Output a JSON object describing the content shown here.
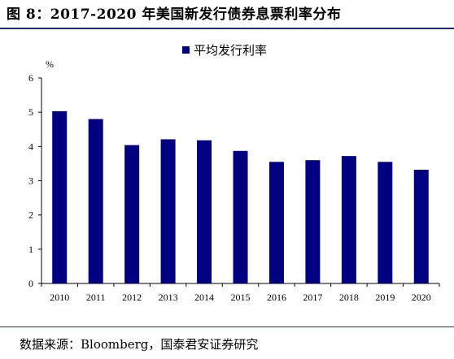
{
  "figure_title": "图 8：2017-2020 年美国新发行债券息票利率分布",
  "source_note": "数据来源：Bloomberg，国泰君安证券研究",
  "colors": {
    "bar": "#000080",
    "rule": "#1f2a7a",
    "axis": "#000000"
  },
  "chart_data": {
    "type": "bar",
    "title": "",
    "xlabel": "",
    "ylabel": "%",
    "categories": [
      "2010",
      "2011",
      "2012",
      "2013",
      "2014",
      "2015",
      "2016",
      "2017",
      "2018",
      "2019",
      "2020"
    ],
    "series": [
      {
        "name": "平均发行利率",
        "values": [
          5.03,
          4.8,
          4.04,
          4.21,
          4.18,
          3.87,
          3.55,
          3.6,
          3.72,
          3.55,
          3.32
        ]
      }
    ],
    "ylim": [
      0,
      6
    ],
    "yticks": [
      0,
      1,
      2,
      3,
      4,
      5,
      6
    ],
    "grid": false,
    "legend_position": "top-center"
  }
}
